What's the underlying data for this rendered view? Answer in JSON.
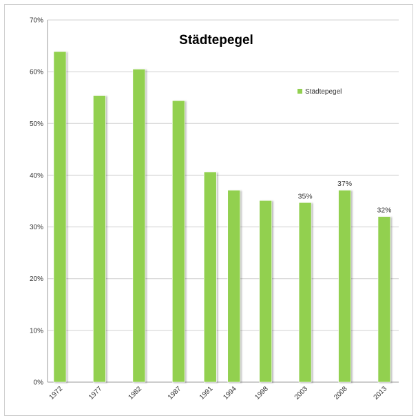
{
  "chart_data": {
    "type": "bar",
    "title": "Städtepegel",
    "categories": [
      "1972",
      "1977",
      "1982",
      "1987",
      "1991",
      "1994",
      "1998",
      "2003",
      "2008",
      "2013"
    ],
    "x": [
      1972,
      1977,
      1982,
      1987,
      1991,
      1994,
      1998,
      2003,
      2008,
      2013
    ],
    "series": [
      {
        "name": "Städtepegel",
        "values": [
          63.9,
          55.4,
          60.5,
          54.4,
          40.6,
          37.1,
          35.1,
          34.7,
          37.1,
          32.0
        ],
        "color": "#92d050"
      }
    ],
    "data_labels": {
      "2003": "35%",
      "2008": "37%",
      "2013": "32%"
    },
    "y_ticks": [
      "0%",
      "10%",
      "20%",
      "30%",
      "40%",
      "50%",
      "60%",
      "70%"
    ],
    "ylim": [
      0,
      70
    ],
    "xlim": [
      1972,
      2013
    ],
    "xlabel": "",
    "ylabel": "",
    "grid": true,
    "legend_position": "top-right"
  }
}
